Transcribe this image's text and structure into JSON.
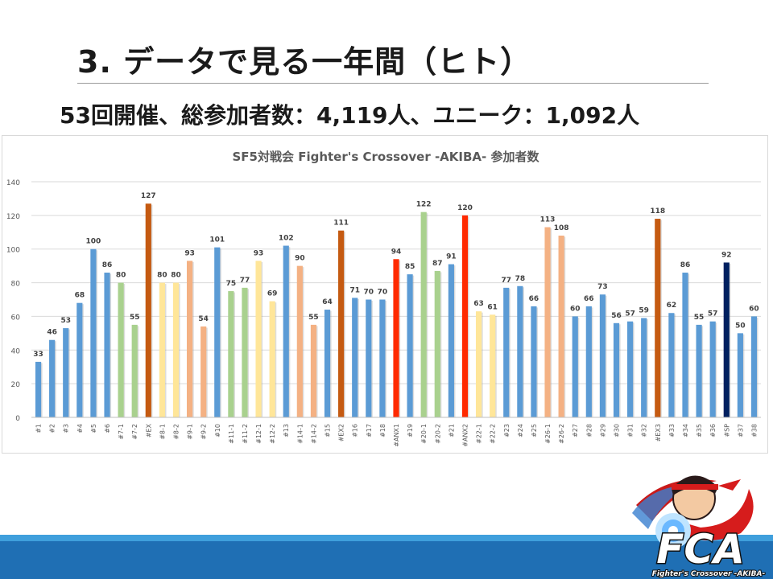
{
  "slide": {
    "title": "3. データで見る一年間（ヒト）",
    "stats": "53回開催、総参加者数：4,119人、ユニーク：1,092人"
  },
  "logo": {
    "text": "FCA",
    "subtitle": "Fighter's Crossover -AKIBA-"
  },
  "colors": {
    "blue": "#5b9bd5",
    "green": "#a9d18e",
    "salmon": "#f4b183",
    "yellow": "#ffe699",
    "brown": "#c55a11",
    "red": "#ff2a00",
    "navy": "#002060",
    "footer_light": "#3f9fdc",
    "footer_dark": "#1f6fb4"
  },
  "chart_data": {
    "type": "bar",
    "title": "SF5対戦会 Fighter's Crossover -AKIBA- 参加者数",
    "xlabel": "",
    "ylabel": "",
    "ylim": [
      0,
      140
    ],
    "yticks": [
      0,
      20,
      40,
      60,
      80,
      100,
      120,
      140
    ],
    "grid": true,
    "legend": "none",
    "data_labels": true,
    "categories": [
      "#1",
      "#2",
      "#3",
      "#4",
      "#5",
      "#6",
      "#7-1",
      "#7-2",
      "#EX",
      "#8-1",
      "#8-2",
      "#9-1",
      "#9-2",
      "#10",
      "#11-1",
      "#11-2",
      "#12-1",
      "#12-2",
      "#13",
      "#14-1",
      "#14-2",
      "#15",
      "#EX2",
      "#16",
      "#17",
      "#18",
      "#ANX1",
      "#19",
      "#20-1",
      "#20-2",
      "#21",
      "#ANX2",
      "#22-1",
      "#22-2",
      "#23",
      "#24",
      "#25",
      "#26-1",
      "#26-2",
      "#27",
      "#28",
      "#29",
      "#30",
      "#31",
      "#32",
      "#EX3",
      "#33",
      "#34",
      "#35",
      "#36",
      "#SP",
      "#37",
      "#38"
    ],
    "values": [
      33,
      46,
      53,
      68,
      100,
      86,
      80,
      55,
      127,
      80,
      80,
      93,
      54,
      101,
      75,
      77,
      93,
      69,
      102,
      90,
      55,
      64,
      111,
      71,
      70,
      70,
      94,
      85,
      122,
      87,
      91,
      120,
      63,
      61,
      77,
      78,
      66,
      113,
      108,
      60,
      66,
      73,
      56,
      57,
      59,
      118,
      62,
      86,
      55,
      57,
      92,
      50,
      60
    ],
    "bar_colors": [
      "blue",
      "blue",
      "blue",
      "blue",
      "blue",
      "blue",
      "green",
      "green",
      "brown",
      "yellow",
      "yellow",
      "salmon",
      "salmon",
      "blue",
      "green",
      "green",
      "yellow",
      "yellow",
      "blue",
      "salmon",
      "salmon",
      "blue",
      "brown",
      "blue",
      "blue",
      "blue",
      "red",
      "blue",
      "green",
      "green",
      "blue",
      "red",
      "yellow",
      "yellow",
      "blue",
      "blue",
      "blue",
      "salmon",
      "salmon",
      "blue",
      "blue",
      "blue",
      "blue",
      "blue",
      "blue",
      "brown",
      "blue",
      "blue",
      "blue",
      "blue",
      "navy",
      "blue",
      "blue"
    ]
  }
}
